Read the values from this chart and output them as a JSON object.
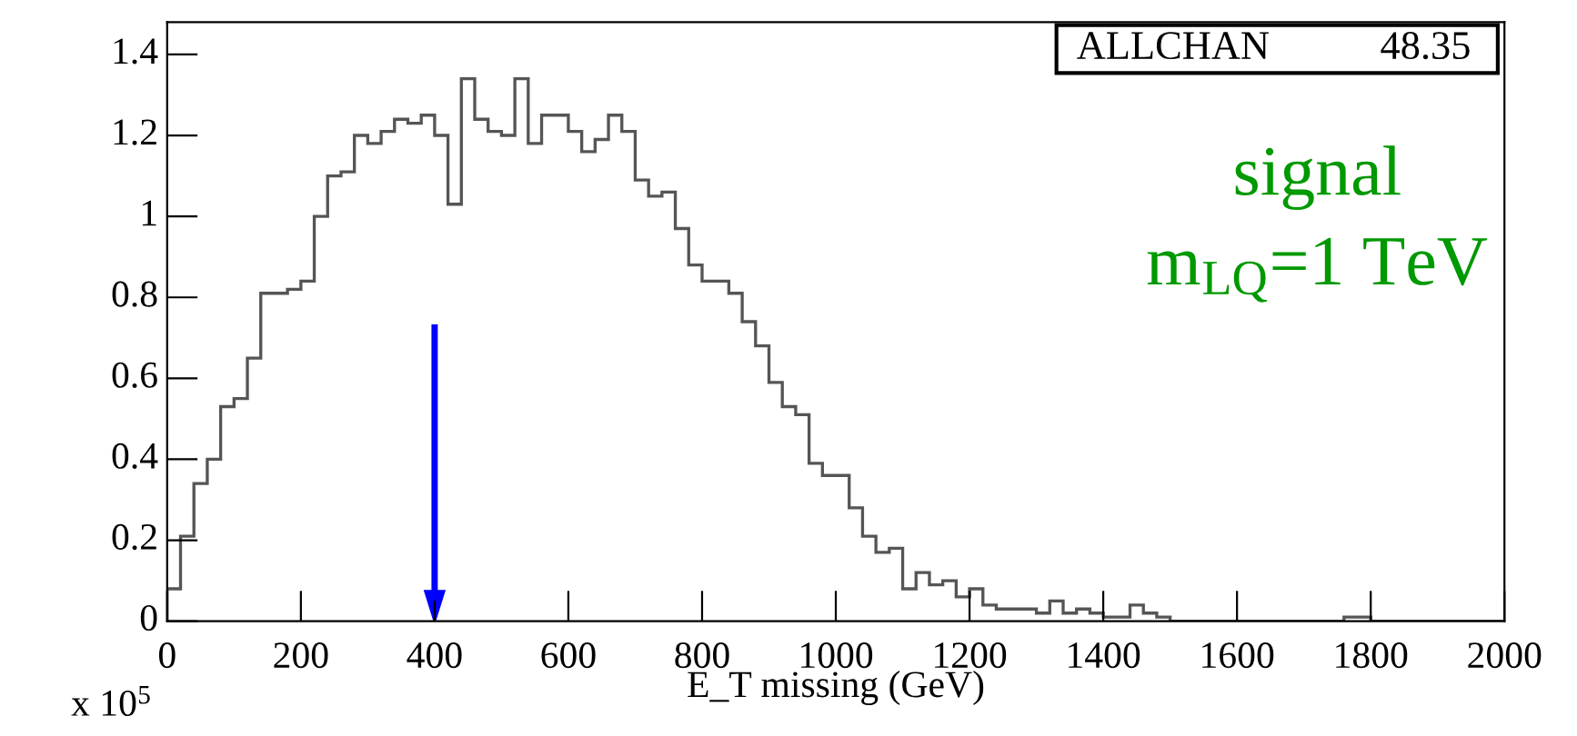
{
  "chart_data": {
    "type": "histogram",
    "xlabel": "E_T missing (GeV)",
    "annotations": [
      "ALLCHAN",
      "48.35",
      "signal",
      "m$_{LQ}$=1 TeV",
      "x 10$^{5}$"
    ],
    "bins": [
      0,
      20,
      40,
      60,
      80,
      100,
      120,
      140,
      160,
      180,
      200,
      220,
      240,
      260,
      280,
      300,
      320,
      340,
      360,
      380,
      400,
      420,
      440,
      460,
      480,
      500,
      520,
      540,
      560,
      580,
      600,
      620,
      640,
      660,
      680,
      700,
      720,
      740,
      760,
      780,
      800,
      820,
      840,
      860,
      880,
      900,
      920,
      940,
      960,
      980,
      1000,
      1020,
      1040,
      1060,
      1080,
      1100,
      1120,
      1140,
      1160,
      1180,
      1200,
      1220,
      1240,
      1260,
      1280,
      1300,
      1320,
      1340,
      1360,
      1380,
      1400,
      1420,
      1440,
      1460,
      1480,
      1500,
      1520,
      1540,
      1560,
      1580,
      1600,
      1620,
      1640,
      1660,
      1680,
      1700,
      1720,
      1740,
      1760,
      1780,
      1800,
      1820,
      1840,
      1860,
      1880,
      1900,
      1920,
      1940,
      1960,
      1980,
      2000
    ],
    "values": [
      0.08,
      0.21,
      0.34,
      0.4,
      0.53,
      0.55,
      0.65,
      0.81,
      0.81,
      0.82,
      0.84,
      1.0,
      1.1,
      1.11,
      1.2,
      1.18,
      1.21,
      1.24,
      1.23,
      1.25,
      1.2,
      1.03,
      1.34,
      1.24,
      1.21,
      1.2,
      1.34,
      1.18,
      1.25,
      1.25,
      1.21,
      1.16,
      1.19,
      1.25,
      1.21,
      1.09,
      1.05,
      1.06,
      0.97,
      0.88,
      0.84,
      0.84,
      0.81,
      0.74,
      0.68,
      0.59,
      0.53,
      0.51,
      0.39,
      0.36,
      0.36,
      0.28,
      0.21,
      0.17,
      0.18,
      0.08,
      0.12,
      0.09,
      0.1,
      0.06,
      0.08,
      0.04,
      0.03,
      0.03,
      0.03,
      0.02,
      0.05,
      0.02,
      0.03,
      0.02,
      0.01,
      0.01,
      0.04,
      0.02,
      0.01,
      0,
      0,
      0,
      0,
      0,
      0,
      0,
      0,
      0,
      0,
      0,
      0,
      0,
      0.01,
      0.01,
      0,
      0,
      0,
      0,
      0,
      0,
      0,
      0,
      0,
      0
    ],
    "color": "#555555",
    "xlim": [
      0,
      2000
    ],
    "xticks": [
      0,
      200,
      400,
      600,
      800,
      1000,
      1200,
      1400,
      1600,
      1800,
      2000
    ],
    "ylim": [
      0,
      1.48
    ],
    "yticks": [
      0,
      0.2,
      0.4,
      0.6,
      0.8,
      {
        "value": 1,
        "label": "1"
      },
      1.2,
      1.4
    ],
    "ref_lines": [
      {
        "axis": "x",
        "value": 400,
        "color": "#0000ff"
      }
    ],
    "grid": false,
    "legend": false
  }
}
